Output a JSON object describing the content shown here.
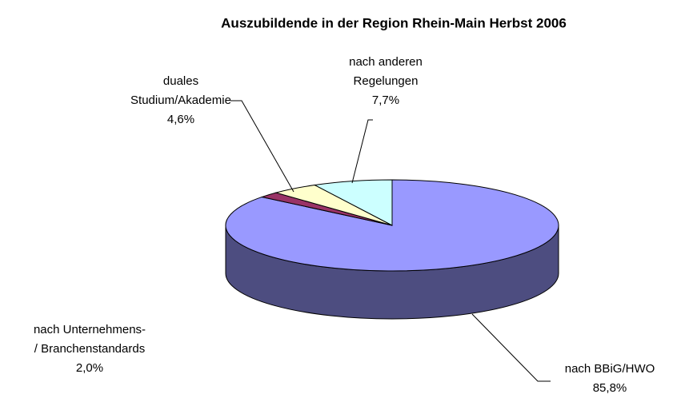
{
  "chart_data": {
    "type": "pie3d",
    "title": "Auszubildende in der Region Rhein-Main Herbst 2006",
    "categories": [
      "nach BBiG/HWO",
      "nach Unternehmens-\n/ Branchenstandards",
      "duales\nStudium/Akademie",
      "nach anderen\nRegelungen"
    ],
    "values": [
      85.8,
      2.0,
      4.6,
      7.7
    ],
    "value_labels": [
      "85,8%",
      "2,0%",
      "4,6%",
      "7,7%"
    ],
    "colors": [
      "#9999ff",
      "#993366",
      "#ffffcc",
      "#ccffff"
    ]
  }
}
